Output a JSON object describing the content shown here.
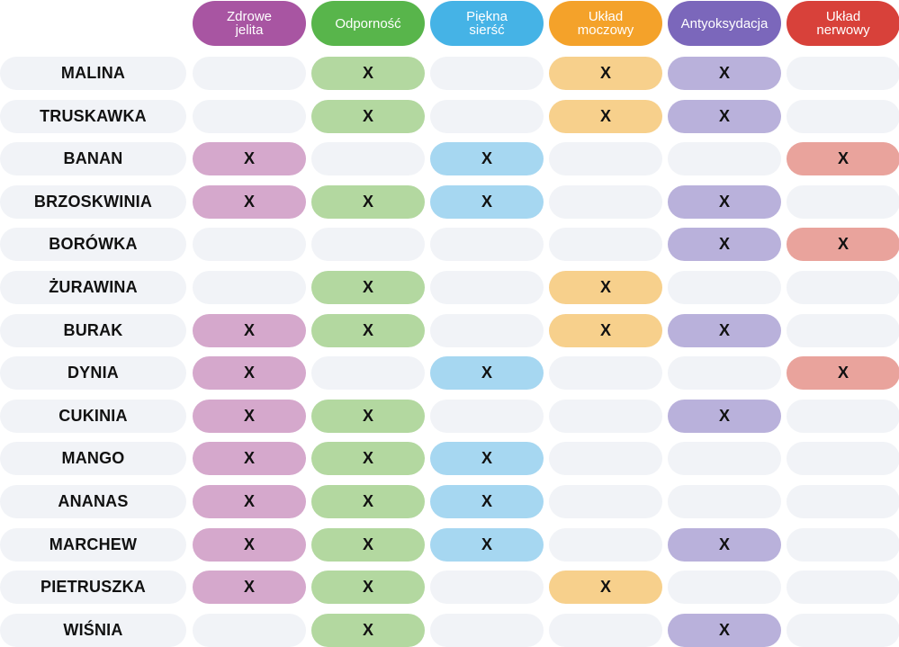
{
  "columns": [
    {
      "label": "Zdrowe\njelita",
      "color": "#a855a2",
      "light": "#d5a8cc"
    },
    {
      "label": "Odporność",
      "color": "#58b54b",
      "light": "#b3d8a0"
    },
    {
      "label": "Piękna\nsierść",
      "color": "#45b3e6",
      "light": "#a6d7f1"
    },
    {
      "label": "Układ\nmoczowy",
      "color": "#f4a22a",
      "light": "#f7d08c"
    },
    {
      "label": "Antyoksydacja",
      "color": "#7b67bb",
      "light": "#b9b1db"
    },
    {
      "label": "Układ\nnerwowy",
      "color": "#d8413a",
      "light": "#e9a39c"
    }
  ],
  "empty_color": "#f1f3f7",
  "mark": "X",
  "rows": [
    {
      "name": "MALINA",
      "marks": [
        false,
        true,
        false,
        true,
        true,
        false
      ]
    },
    {
      "name": "TRUSKAWKA",
      "marks": [
        false,
        true,
        false,
        true,
        true,
        false
      ]
    },
    {
      "name": "BANAN",
      "marks": [
        true,
        false,
        true,
        false,
        false,
        true
      ]
    },
    {
      "name": "BRZOSKWINIA",
      "marks": [
        true,
        true,
        true,
        false,
        true,
        false
      ]
    },
    {
      "name": "BORÓWKA",
      "marks": [
        false,
        false,
        false,
        false,
        true,
        true
      ]
    },
    {
      "name": "ŻURAWINA",
      "marks": [
        false,
        true,
        false,
        true,
        false,
        false
      ]
    },
    {
      "name": "BURAK",
      "marks": [
        true,
        true,
        false,
        true,
        true,
        false
      ]
    },
    {
      "name": "DYNIA",
      "marks": [
        true,
        false,
        true,
        false,
        false,
        true
      ]
    },
    {
      "name": "CUKINIA",
      "marks": [
        true,
        true,
        false,
        false,
        true,
        false
      ]
    },
    {
      "name": "MANGO",
      "marks": [
        true,
        true,
        true,
        false,
        false,
        false
      ]
    },
    {
      "name": "ANANAS",
      "marks": [
        true,
        true,
        true,
        false,
        false,
        false
      ]
    },
    {
      "name": "MARCHEW",
      "marks": [
        true,
        true,
        true,
        false,
        true,
        false
      ]
    },
    {
      "name": "PIETRUSZKA",
      "marks": [
        true,
        true,
        false,
        true,
        false,
        false
      ]
    },
    {
      "name": "WIŚNIA",
      "marks": [
        false,
        true,
        false,
        false,
        true,
        false
      ]
    }
  ]
}
